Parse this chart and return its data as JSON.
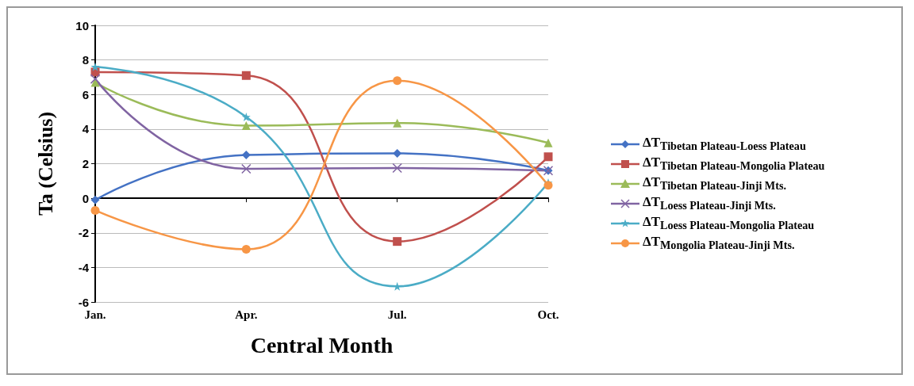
{
  "chart_data": {
    "type": "line",
    "xlabel": "Central Month",
    "ylabel": "Ta (Celsius)",
    "categories": [
      "Jan.",
      "Apr.",
      "Jul.",
      "Oct."
    ],
    "series": [
      {
        "name": "ΔT$_{Tibetan Plateau-Loess Plateau}$",
        "color": "#4472c4",
        "marker": "diamond",
        "values": [
          -0.1,
          2.5,
          2.6,
          1.6
        ]
      },
      {
        "name": "ΔT$_{Tibetan Plateau-Mongolia Plateau}$",
        "color": "#c0504d",
        "marker": "square",
        "values": [
          7.3,
          7.1,
          -2.5,
          2.4
        ]
      },
      {
        "name": "ΔT$_{Tibetan Plateau-Jinji Mts.}$",
        "color": "#9bbb59",
        "marker": "triangle",
        "values": [
          6.7,
          4.2,
          4.35,
          3.2
        ]
      },
      {
        "name": "ΔT$_{Loess Plateau-Jinji Mts.}$",
        "color": "#8064a2",
        "marker": "cross",
        "values": [
          6.9,
          1.7,
          1.75,
          1.6
        ]
      },
      {
        "name": "ΔT$_{Loess Plateau-Mongolia Plateau}$",
        "color": "#4bacc6",
        "marker": "star",
        "values": [
          7.6,
          4.7,
          -5.1,
          0.9
        ]
      },
      {
        "name": "ΔT$_{Mongolia Plateau-Jinji Mts.}$",
        "color": "#f79646",
        "marker": "circle",
        "values": [
          -0.7,
          -2.95,
          6.8,
          0.75
        ]
      }
    ],
    "ylim": [
      -6,
      10
    ],
    "yticks": [
      -6,
      -4,
      -2,
      0,
      2,
      4,
      6,
      8,
      10
    ],
    "grid": "y",
    "legend": "right",
    "line_style": "solid"
  }
}
